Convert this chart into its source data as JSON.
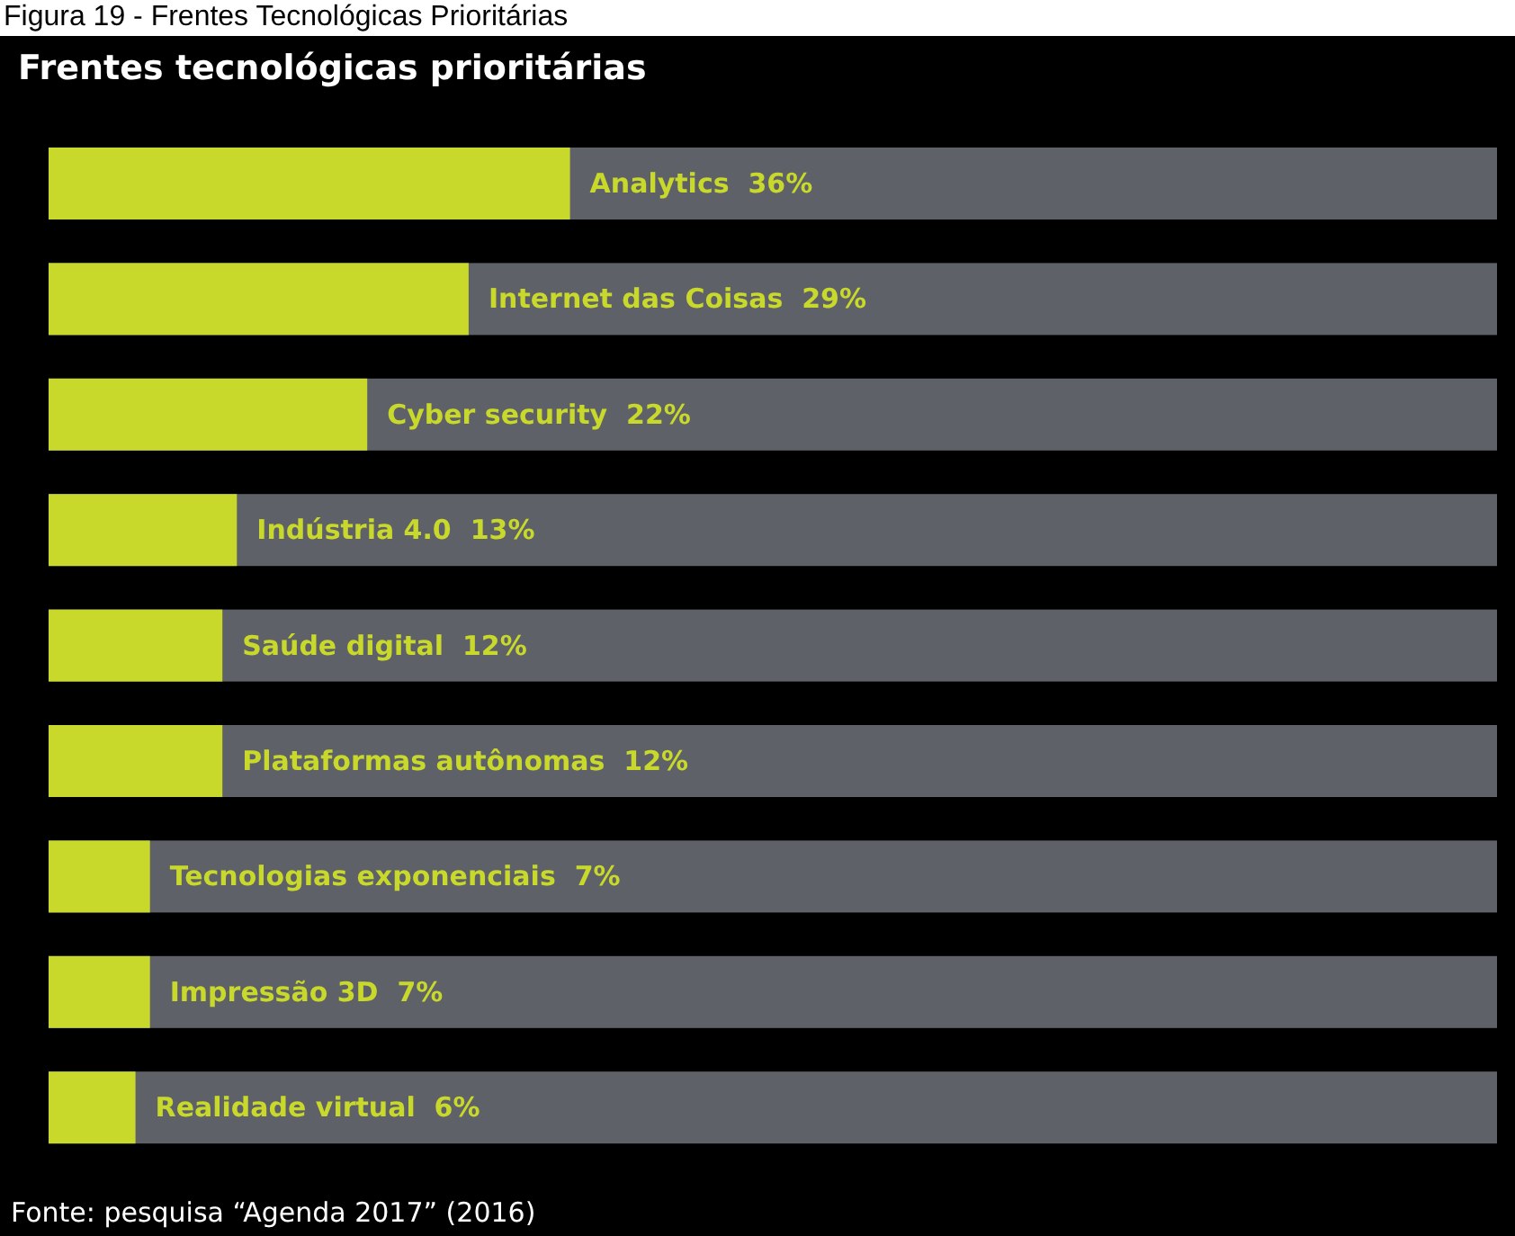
{
  "chart_data": {
    "type": "bar",
    "orientation": "horizontal",
    "xlim": [
      0,
      100
    ],
    "title": "Figura 19 - Frentes Tecnológicas Prioritárias",
    "subtitle": "Frentes tecnológicas prioritárias",
    "categories": [
      null,
      null,
      null,
      null,
      null,
      null,
      null,
      null,
      null
    ],
    "series": [
      {
        "color": "#c8d92b",
        "values": [
          36,
          29,
          22,
          13,
          12,
          12,
          7,
          7,
          6
        ],
        "value_labels": [
          "Analytics  36%",
          "Internet das Coisas  29%",
          "Cyber security  22%",
          "Indústria 4.0  13%",
          "Saúde digital  12%",
          "Plataformas autônomas  12%",
          "Tecnologias exponenciais  7%",
          "Impressão 3D  7%",
          "Realidade virtual  6%"
        ]
      }
    ],
    "annotations": [
      "Fonte: pesquisa “Agenda 2017” (2016)"
    ]
  }
}
